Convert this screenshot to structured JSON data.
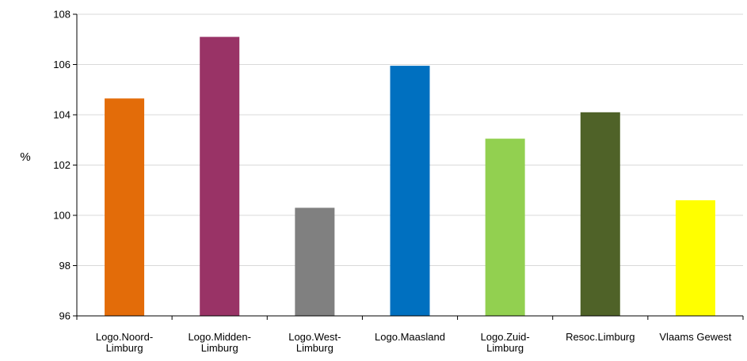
{
  "chart_data": {
    "type": "bar",
    "categories": [
      [
        "Logo.Noord-",
        "Limburg"
      ],
      [
        "Logo.Midden-",
        "Limburg"
      ],
      [
        "Logo.West-",
        "Limburg"
      ],
      [
        "Logo.Maasland"
      ],
      [
        "Logo.Zuid-",
        "Limburg"
      ],
      [
        "Resoc.Limburg"
      ],
      [
        "Vlaams Gewest"
      ]
    ],
    "values": [
      104.65,
      107.1,
      100.3,
      105.95,
      103.05,
      104.1,
      100.6
    ],
    "colors": [
      "#E36C09",
      "#993366",
      "#808080",
      "#0070C0",
      "#92D050",
      "#4F6228",
      "#FFFF00"
    ],
    "ylabel": "%",
    "ylim": [
      96,
      108
    ],
    "yticks": [
      96,
      98,
      100,
      102,
      104,
      106,
      108
    ],
    "grid": true
  }
}
